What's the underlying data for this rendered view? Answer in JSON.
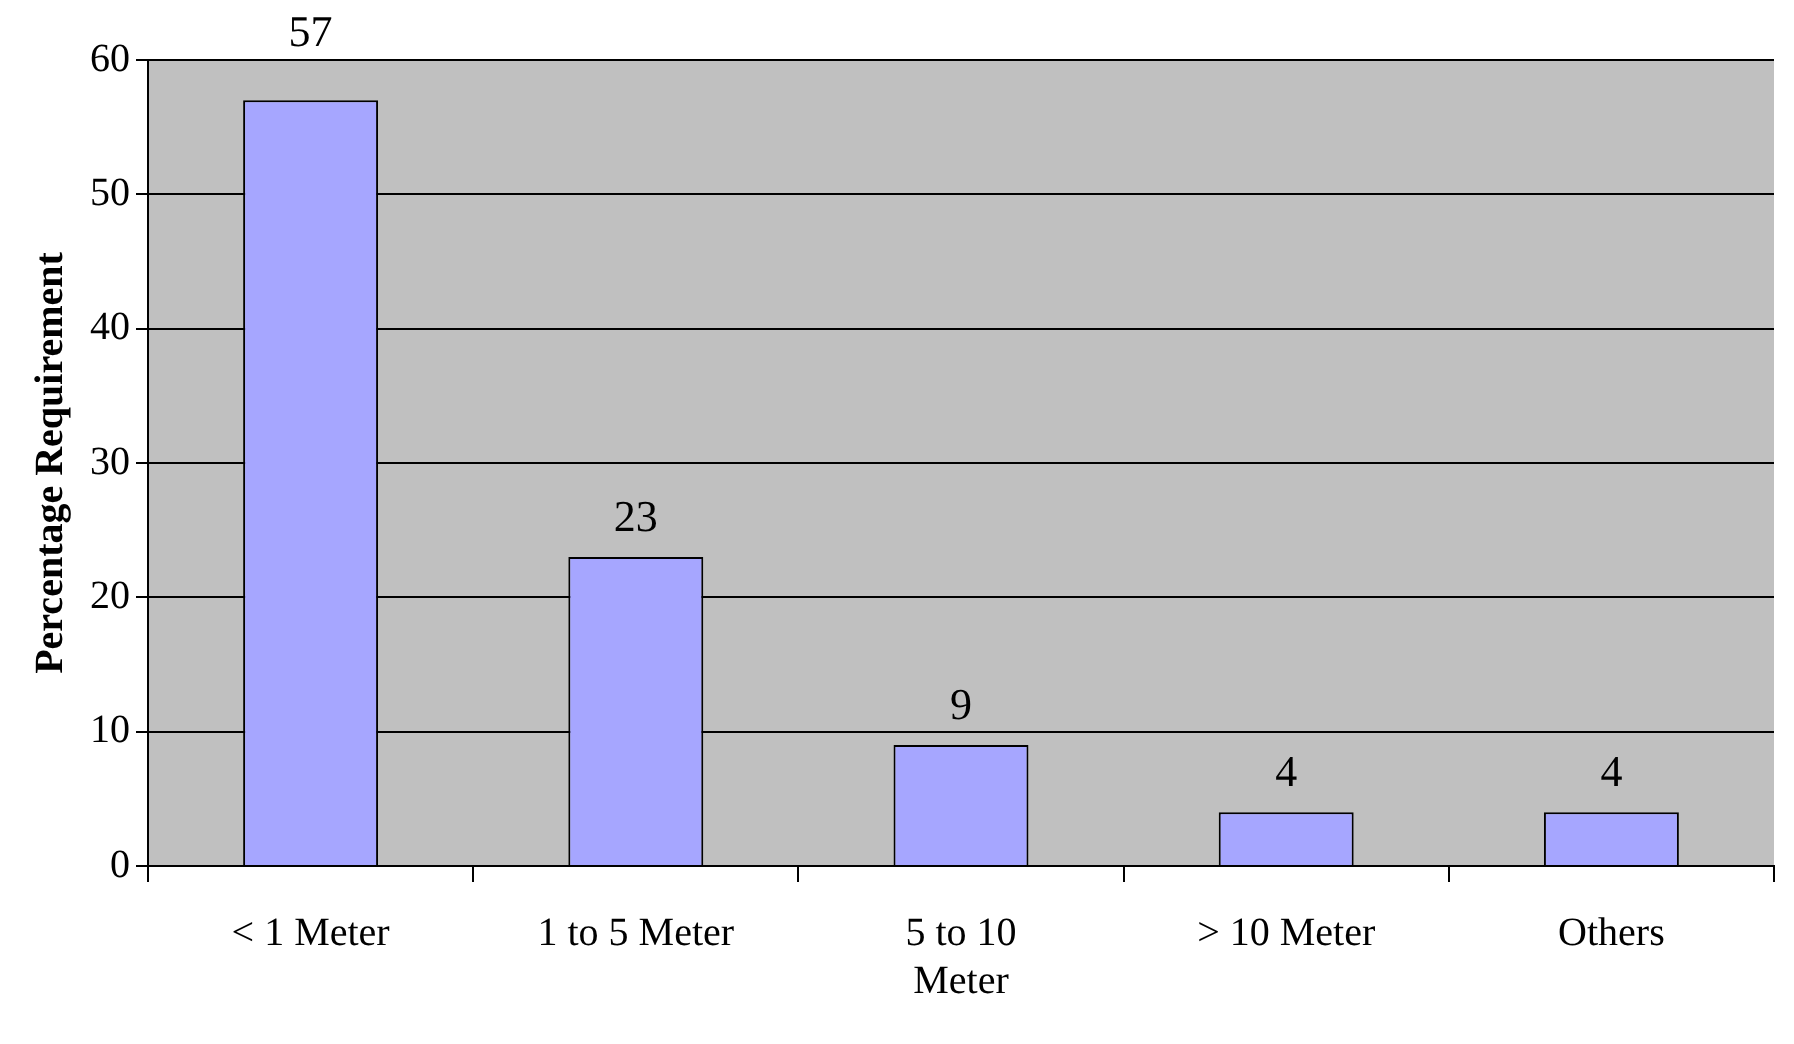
{
  "chart_data": {
    "type": "bar",
    "ylabel": "Percentage Requirement",
    "categories": [
      "< 1 Meter",
      "1 to 5 Meter",
      "5 to 10 Meter",
      "> 10 Meter",
      "Others"
    ],
    "values": [
      57,
      23,
      9,
      4,
      4
    ],
    "color": "#a6a6ff",
    "ylim": [
      0,
      60
    ],
    "yticks": [
      0,
      10,
      20,
      30,
      40,
      50,
      60
    ],
    "grid": "y",
    "data_labels": true,
    "legend": false
  }
}
